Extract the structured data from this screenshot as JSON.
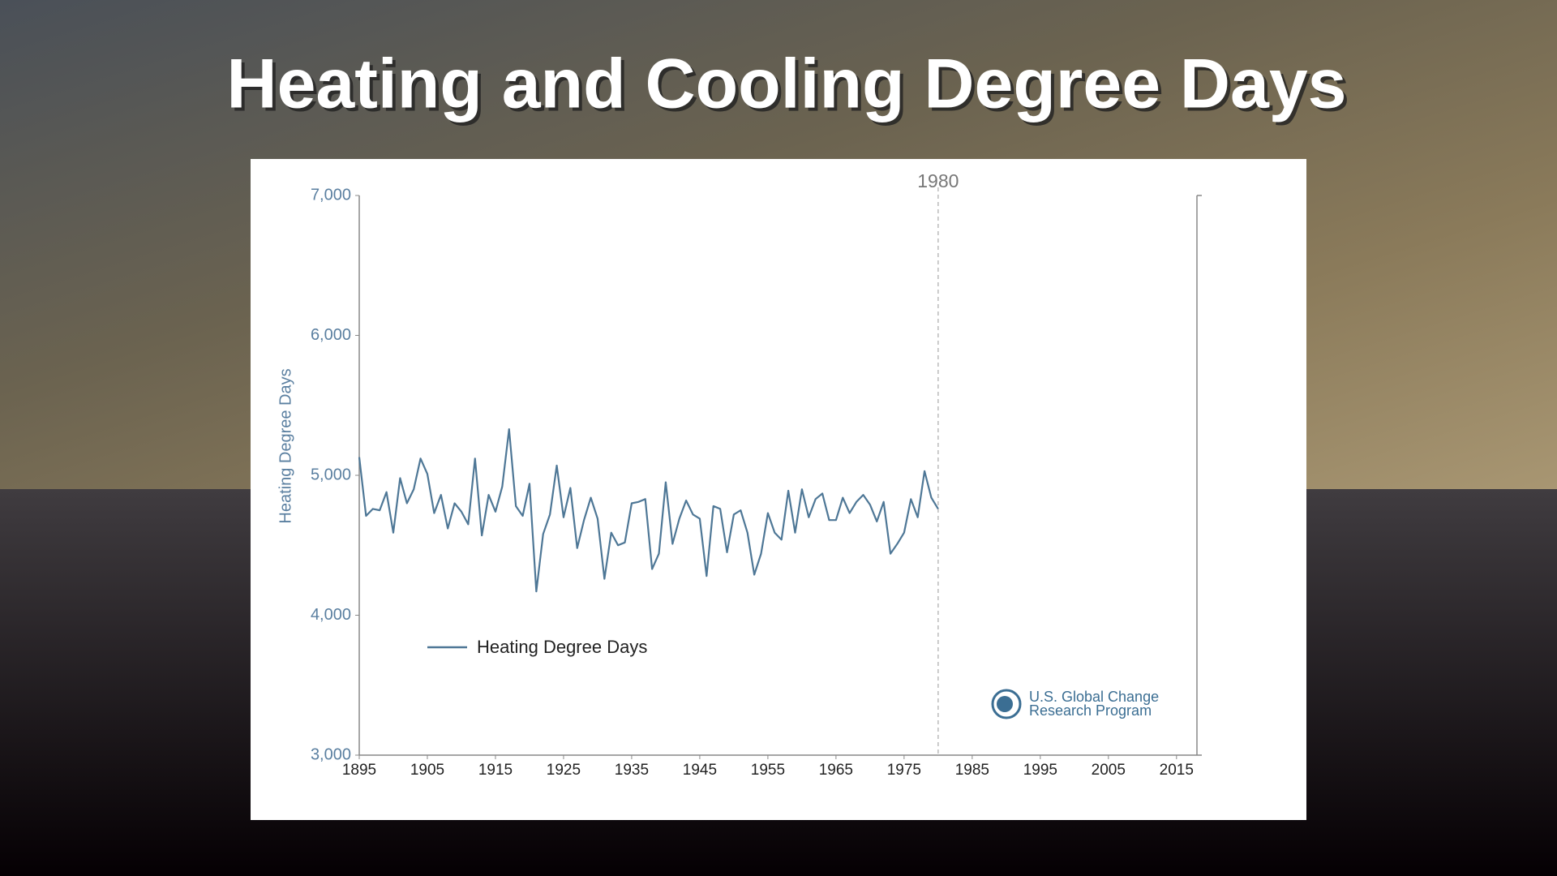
{
  "chart_data": {
    "type": "line",
    "title": "Heating and Cooling Degree Days",
    "y_label": "Heating Degree Days",
    "x": [
      1895,
      1896,
      1897,
      1898,
      1899,
      1900,
      1901,
      1902,
      1903,
      1904,
      1905,
      1906,
      1907,
      1908,
      1909,
      1910,
      1911,
      1912,
      1913,
      1914,
      1915,
      1916,
      1917,
      1918,
      1919,
      1920,
      1921,
      1922,
      1923,
      1924,
      1925,
      1926,
      1927,
      1928,
      1929,
      1930,
      1931,
      1932,
      1933,
      1934,
      1935,
      1936,
      1937,
      1938,
      1939,
      1940,
      1941,
      1942,
      1943,
      1944,
      1945,
      1946,
      1947,
      1948,
      1949,
      1950,
      1951,
      1952,
      1953,
      1954,
      1955,
      1956,
      1957,
      1958,
      1959,
      1960,
      1961,
      1962,
      1963,
      1964,
      1965,
      1966,
      1967,
      1968,
      1969,
      1970,
      1971,
      1972,
      1973,
      1974,
      1975,
      1976,
      1977,
      1978,
      1979,
      1980
    ],
    "series": [
      {
        "name": "Heating Degree Days",
        "color": "#4e7796",
        "values": [
          5130,
          4710,
          4760,
          4750,
          4880,
          4590,
          4980,
          4800,
          4900,
          5120,
          5010,
          4730,
          4860,
          4620,
          4800,
          4740,
          4650,
          5120,
          4570,
          4860,
          4740,
          4920,
          5330,
          4780,
          4710,
          4940,
          4170,
          4580,
          4720,
          5070,
          4700,
          4910,
          4480,
          4680,
          4840,
          4690,
          4260,
          4590,
          4500,
          4520,
          4800,
          4810,
          4830,
          4330,
          4440,
          4950,
          4510,
          4690,
          4820,
          4720,
          4690,
          4280,
          4780,
          4760,
          4450,
          4720,
          4750,
          4590,
          4290,
          4440,
          4730,
          4590,
          4540,
          4890,
          4590,
          4900,
          4700,
          4830,
          4870,
          4680,
          4680,
          4840,
          4730,
          4810,
          4860,
          4790,
          4670,
          4810,
          4440,
          4510,
          4590,
          4830,
          4700,
          5030,
          4840,
          4760
        ]
      }
    ],
    "xlim": [
      1895,
      2018
    ],
    "xticks": [
      1895,
      1905,
      1915,
      1925,
      1935,
      1945,
      1955,
      1965,
      1975,
      1985,
      1995,
      2005,
      2015
    ],
    "ylim": [
      3000,
      7000
    ],
    "yticks": [
      {
        "value": 3000,
        "label": "3,000"
      },
      {
        "value": 4000,
        "label": "4,000"
      },
      {
        "value": 5000,
        "label": "5,000"
      },
      {
        "value": 6000,
        "label": "6,000"
      },
      {
        "value": 7000,
        "label": "7,000"
      }
    ],
    "annotations": [
      {
        "x": 1980
      }
    ],
    "source": [
      "U.S. Global Change",
      "Research Program"
    ]
  }
}
